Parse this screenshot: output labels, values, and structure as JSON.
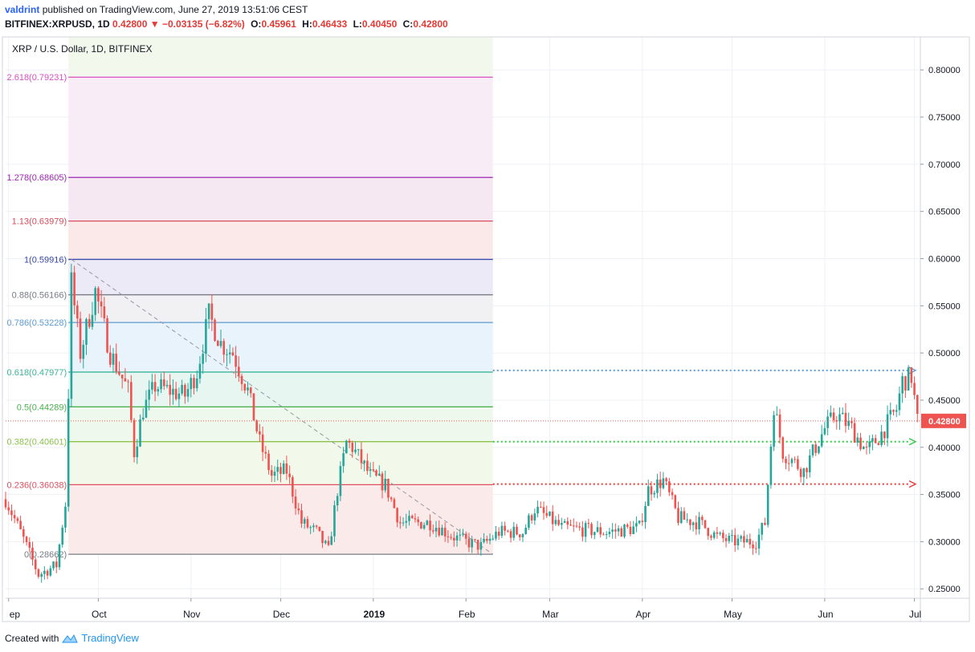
{
  "header": {
    "user": "valdrint",
    "published": "published on TradingView.com, June 27, 2019 13:51:06 CEST",
    "symbol": "BITFINEX:XRPUSD, 1D",
    "last": "0.42800",
    "change": "−0.03135 (−6.82%)",
    "o_label": "O:",
    "o": "0.45961",
    "h_label": "H:",
    "h": "0.46433",
    "l_label": "L:",
    "l": "0.40450",
    "c_label": "C:",
    "c": "0.42800"
  },
  "footer": {
    "created_with": "Created with",
    "brand": "TradingView"
  },
  "colors": {
    "up": "#26a69a",
    "down": "#ef5350",
    "price_tag": "#ef5350",
    "grid": "#eef1f5"
  },
  "chart_data": {
    "type": "candlestick",
    "title": "XRP / U.S. Dollar, 1D, BITFINEX",
    "price_label": "0.42800",
    "y_ticks": [
      "0.80000",
      "0.75000",
      "0.70000",
      "0.65000",
      "0.60000",
      "0.55000",
      "0.50000",
      "0.45000",
      "0.40000",
      "0.35000",
      "0.30000",
      "0.25000"
    ],
    "ylim": [
      0.24,
      0.835
    ],
    "x_labels": [
      {
        "label": "ep",
        "date": "2018-09-01"
      },
      {
        "label": "Oct",
        "date": "2018-10-01"
      },
      {
        "label": "Nov",
        "date": "2018-11-01"
      },
      {
        "label": "Dec",
        "date": "2018-12-01"
      },
      {
        "label": "2019",
        "date": "2019-01-01",
        "bold": true
      },
      {
        "label": "Feb",
        "date": "2019-02-01"
      },
      {
        "label": "Mar",
        "date": "2019-03-01"
      },
      {
        "label": "Apr",
        "date": "2019-04-01"
      },
      {
        "label": "May",
        "date": "2019-05-01"
      },
      {
        "label": "Jun",
        "date": "2019-06-01"
      },
      {
        "label": "Jul",
        "date": "2019-07-01"
      }
    ],
    "x_range": [
      "2018-08-31",
      "2019-07-03"
    ],
    "fib_start_date": "2018-09-21",
    "fib_end_date": "2019-02-10",
    "fib_levels": [
      {
        "label": "2.618(0.79231)",
        "value": 0.79231,
        "color": "#d94fc3",
        "fill": "#f8ecf6"
      },
      {
        "label": "1.278(0.68605)",
        "value": 0.68605,
        "color": "#9c27b0",
        "fill": "#f6e8f3"
      },
      {
        "label": "1.13(0.63979)",
        "value": 0.63979,
        "color": "#d84c5b",
        "fill": "#fbe9e9"
      },
      {
        "label": "1(0.59916)",
        "value": 0.59916,
        "color": "#3949ab",
        "fill": "#ebeaf6"
      },
      {
        "label": "0.88(0.56166)",
        "value": 0.56166,
        "color": "#787b86",
        "fill": "#f1f1f3"
      },
      {
        "label": "0.786(0.53228)",
        "value": 0.53228,
        "color": "#5b9bd5",
        "fill": "#e9f3fb"
      },
      {
        "label": "0.618(0.47977)",
        "value": 0.47977,
        "color": "#3cb39b",
        "fill": "#e8f6f2"
      },
      {
        "label": "0.5(0.44289)",
        "value": 0.44289,
        "color": "#4caf50",
        "fill": "#eef8ec"
      },
      {
        "label": "0.382(0.40601)",
        "value": 0.40601,
        "color": "#8bc34a",
        "fill": "#f3f9ea"
      },
      {
        "label": "0.236(0.36038)",
        "value": 0.36038,
        "color": "#e04f5f",
        "fill": "#fbeaea"
      },
      {
        "label": "0(0.28662)",
        "value": 0.28662,
        "color": "#787b86",
        "fill": "#fbeaea"
      }
    ],
    "extensions": [
      {
        "value": 0.4815,
        "color": "#5b9bd5"
      },
      {
        "value": 0.406,
        "color": "#2ecc40"
      },
      {
        "value": 0.361,
        "color": "#e53935"
      }
    ],
    "trend_line": [
      [
        "2018-09-22",
        0.5992
      ],
      [
        "2019-02-10",
        0.2866
      ]
    ],
    "current_price": 0.428,
    "anchors": [
      [
        "2018-08-31",
        0.345
      ],
      [
        "2018-09-05",
        0.31
      ],
      [
        "2018-09-11",
        0.265
      ],
      [
        "2018-09-17",
        0.275
      ],
      [
        "2018-09-20",
        0.34
      ],
      [
        "2018-09-22",
        0.575
      ],
      [
        "2018-09-25",
        0.5
      ],
      [
        "2018-09-30",
        0.565
      ],
      [
        "2018-10-05",
        0.5
      ],
      [
        "2018-10-11",
        0.46
      ],
      [
        "2018-10-13",
        0.395
      ],
      [
        "2018-10-16",
        0.44
      ],
      [
        "2018-10-20",
        0.465
      ],
      [
        "2018-10-30",
        0.455
      ],
      [
        "2018-11-03",
        0.48
      ],
      [
        "2018-11-07",
        0.54
      ],
      [
        "2018-11-11",
        0.51
      ],
      [
        "2018-11-15",
        0.5
      ],
      [
        "2018-11-20",
        0.46
      ],
      [
        "2018-11-24",
        0.405
      ],
      [
        "2018-11-28",
        0.37
      ],
      [
        "2018-12-03",
        0.375
      ],
      [
        "2018-12-08",
        0.32
      ],
      [
        "2018-12-13",
        0.31
      ],
      [
        "2018-12-17",
        0.29
      ],
      [
        "2018-12-20",
        0.355
      ],
      [
        "2018-12-23",
        0.405
      ],
      [
        "2018-12-25",
        0.4
      ],
      [
        "2018-12-31",
        0.37
      ],
      [
        "2019-01-05",
        0.36
      ],
      [
        "2019-01-10",
        0.32
      ],
      [
        "2019-01-20",
        0.32
      ],
      [
        "2019-01-28",
        0.305
      ],
      [
        "2019-02-01",
        0.3
      ],
      [
        "2019-02-06",
        0.295
      ],
      [
        "2019-02-12",
        0.31
      ],
      [
        "2019-02-20",
        0.31
      ],
      [
        "2019-02-24",
        0.335
      ],
      [
        "2019-03-05",
        0.315
      ],
      [
        "2019-03-20",
        0.31
      ],
      [
        "2019-03-31",
        0.315
      ],
      [
        "2019-04-03",
        0.355
      ],
      [
        "2019-04-08",
        0.365
      ],
      [
        "2019-04-13",
        0.325
      ],
      [
        "2019-04-20",
        0.32
      ],
      [
        "2019-04-26",
        0.305
      ],
      [
        "2019-05-01",
        0.3
      ],
      [
        "2019-05-09",
        0.3
      ],
      [
        "2019-05-12",
        0.32
      ],
      [
        "2019-05-15",
        0.445
      ],
      [
        "2019-05-18",
        0.395
      ],
      [
        "2019-05-25",
        0.375
      ],
      [
        "2019-06-01",
        0.42
      ],
      [
        "2019-06-05",
        0.435
      ],
      [
        "2019-06-10",
        0.42
      ],
      [
        "2019-06-15",
        0.395
      ],
      [
        "2019-06-20",
        0.415
      ],
      [
        "2019-06-25",
        0.44
      ],
      [
        "2019-06-27",
        0.47
      ],
      [
        "2019-06-30",
        0.475
      ],
      [
        "2019-07-02",
        0.428
      ]
    ]
  }
}
